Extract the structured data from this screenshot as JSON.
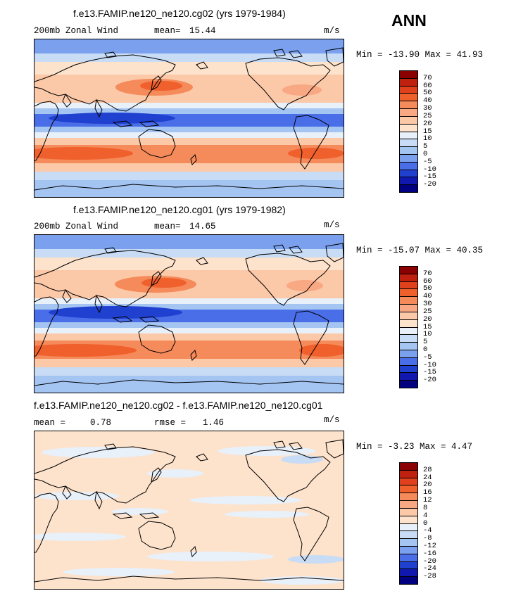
{
  "season": "ANN",
  "panels": [
    {
      "title": "f.e13.FAMIP.ne120_ne120.cg02 (yrs 1979-1984)",
      "variable": "200mb Zonal Wind",
      "stat_label": "mean=",
      "stat_value": "15.44",
      "units": "m/s",
      "minmax": "Min = -13.90 Max =  41.93",
      "levels": [
        "70",
        "60",
        "50",
        "40",
        "30",
        "25",
        "20",
        "15",
        "10",
        "5",
        "0",
        "-5",
        "-10",
        "-15",
        "-20"
      ],
      "colors": [
        "#8b0000",
        "#c0200f",
        "#e0401c",
        "#f0602c",
        "#f58a5a",
        "#f8a882",
        "#fbc8a8",
        "#fde2cc",
        "#e8f0fa",
        "#c8dcf6",
        "#a4c4f2",
        "#7aa0ee",
        "#4a6ee8",
        "#2040d0",
        "#1018b0",
        "#000080"
      ]
    },
    {
      "title": "f.e13.FAMIP.ne120_ne120.cg01 (yrs 1979-1982)",
      "variable": "200mb Zonal Wind",
      "stat_label": "mean=",
      "stat_value": "14.65",
      "units": "m/s",
      "minmax": "Min = -15.07 Max =  40.35",
      "levels": [
        "70",
        "60",
        "50",
        "40",
        "30",
        "25",
        "20",
        "15",
        "10",
        "5",
        "0",
        "-5",
        "-10",
        "-15",
        "-20"
      ],
      "colors": [
        "#8b0000",
        "#c0200f",
        "#e0401c",
        "#f0602c",
        "#f58a5a",
        "#f8a882",
        "#fbc8a8",
        "#fde2cc",
        "#e8f0fa",
        "#c8dcf6",
        "#a4c4f2",
        "#7aa0ee",
        "#4a6ee8",
        "#2040d0",
        "#1018b0",
        "#000080"
      ]
    },
    {
      "title": "f.e13.FAMIP.ne120_ne120.cg02 - f.e13.FAMIP.ne120_ne120.cg01",
      "stat_label": "mean =",
      "stat_value": "0.78",
      "rmse_label": "rmse =",
      "rmse_value": "1.46",
      "units": "m/s",
      "minmax": "Min =  -3.23 Max =   4.47",
      "levels": [
        "28",
        "24",
        "20",
        "16",
        "12",
        "8",
        "4",
        "0",
        "-4",
        "-8",
        "-12",
        "-16",
        "-20",
        "-24",
        "-28"
      ],
      "colors": [
        "#8b0000",
        "#c0200f",
        "#e0401c",
        "#f0602c",
        "#f58a5a",
        "#f8a882",
        "#fbc8a8",
        "#fde2cc",
        "#e8f0fa",
        "#c8dcf6",
        "#a4c4f2",
        "#7aa0ee",
        "#4a6ee8",
        "#2040d0",
        "#1018b0",
        "#000080"
      ]
    }
  ]
}
